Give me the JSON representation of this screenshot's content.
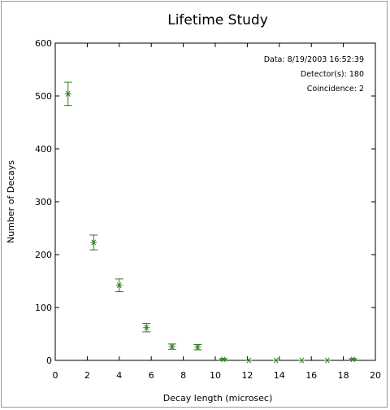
{
  "chart_data": {
    "type": "scatter",
    "title": "Lifetime Study",
    "xlabel": "Decay length (microsec)",
    "ylabel": "Number of Decays",
    "xlim": [
      0,
      20
    ],
    "ylim": [
      0,
      600
    ],
    "xticks": [
      0,
      2,
      4,
      6,
      8,
      10,
      12,
      14,
      16,
      18,
      20
    ],
    "yticks": [
      0,
      100,
      200,
      300,
      400,
      500,
      600
    ],
    "grid": false,
    "marker": "asterisk",
    "error_bars": true,
    "color": "#2e7d1f",
    "points": [
      {
        "x": 0.8,
        "y": 504,
        "err": 22
      },
      {
        "x": 2.4,
        "y": 223,
        "err": 14
      },
      {
        "x": 4.0,
        "y": 142,
        "err": 12
      },
      {
        "x": 5.7,
        "y": 62,
        "err": 8
      },
      {
        "x": 7.3,
        "y": 26,
        "err": 5
      },
      {
        "x": 8.9,
        "y": 25,
        "err": 5
      },
      {
        "x": 10.5,
        "y": 2,
        "err": 1.5
      },
      {
        "x": 12.1,
        "y": 0,
        "err": 0
      },
      {
        "x": 13.8,
        "y": 0,
        "err": 0
      },
      {
        "x": 15.4,
        "y": 0,
        "err": 0
      },
      {
        "x": 17.0,
        "y": 0,
        "err": 0
      },
      {
        "x": 18.6,
        "y": 2,
        "err": 1.5
      }
    ],
    "annotations": [
      "Data: 8/19/2003 16:52:39",
      "Detector(s): 180",
      "Coincidence: 2"
    ]
  }
}
